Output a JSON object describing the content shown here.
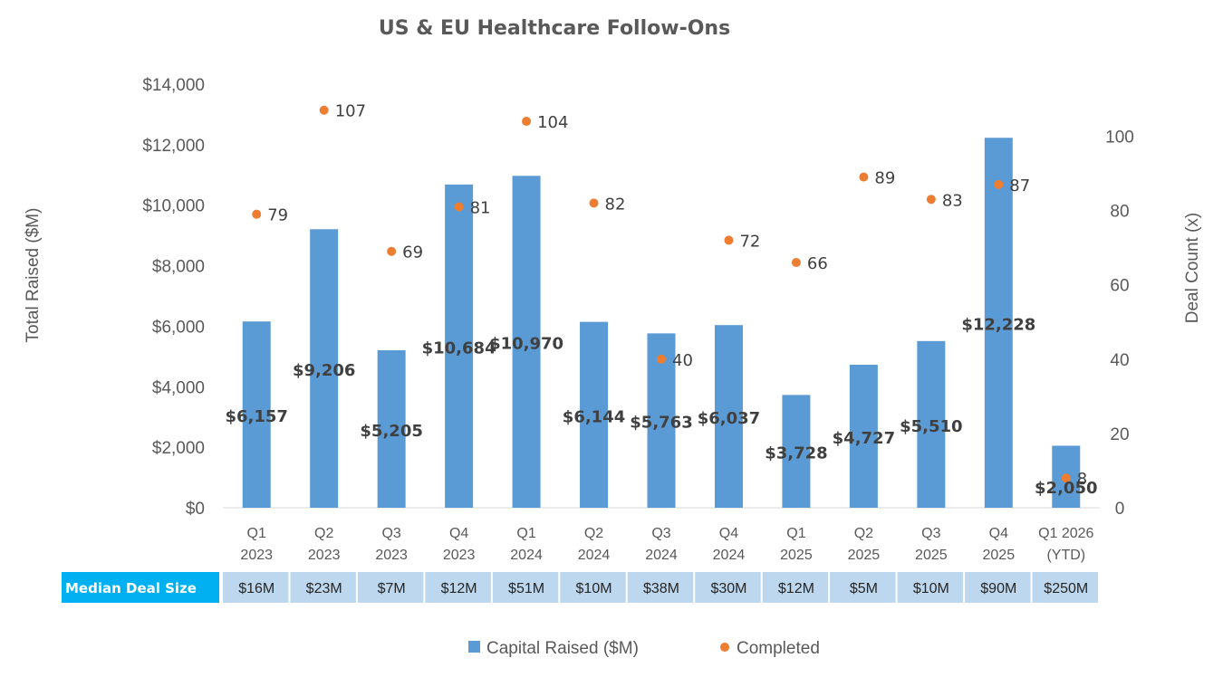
{
  "chart_data": {
    "type": "bar",
    "title": "US & EU Healthcare Follow-Ons",
    "ylabel": "Total Raised ($M)",
    "y2label": "Deal Count (x)",
    "ylim": [
      0,
      14000
    ],
    "y2lim": [
      0,
      114
    ],
    "yticks": [
      "$0",
      "$2,000",
      "$4,000",
      "$6,000",
      "$8,000",
      "$10,000",
      "$12,000",
      "$14,000"
    ],
    "yticks_values": [
      0,
      2000,
      4000,
      6000,
      8000,
      10000,
      12000,
      14000
    ],
    "y2ticks": [
      "0",
      "20",
      "40",
      "60",
      "80",
      "100"
    ],
    "y2ticks_values": [
      0,
      20,
      40,
      60,
      80,
      100
    ],
    "categories": [
      [
        "Q1",
        "2023"
      ],
      [
        "Q2",
        "2023"
      ],
      [
        "Q3",
        "2023"
      ],
      [
        "Q4",
        "2023"
      ],
      [
        "Q1",
        "2024"
      ],
      [
        "Q2",
        "2024"
      ],
      [
        "Q3",
        "2024"
      ],
      [
        "Q4",
        "2024"
      ],
      [
        "Q1",
        "2025"
      ],
      [
        "Q2",
        "2025"
      ],
      [
        "Q3",
        "2025"
      ],
      [
        "Q4",
        "2025"
      ],
      [
        "Q1 2026",
        "(YTD)"
      ]
    ],
    "series": [
      {
        "name": "Capital Raised ($M)",
        "type": "bar",
        "axis": "left",
        "color": "#5b9bd5",
        "values": [
          6157,
          9206,
          5205,
          10684,
          10970,
          6144,
          5763,
          6037,
          3728,
          4727,
          5510,
          12228,
          2050
        ],
        "labels": [
          "$6,157",
          "$9,206",
          "$5,205",
          "$10,684",
          "$10,970",
          "$6,144",
          "$5,763",
          "$6,037",
          "$3,728",
          "$4,727",
          "$5,510",
          "$12,228",
          "$2,050"
        ]
      },
      {
        "name": "Completed",
        "type": "scatter",
        "axis": "right",
        "color": "#ed7d31",
        "values": [
          79,
          107,
          69,
          81,
          104,
          82,
          40,
          72,
          66,
          89,
          83,
          87,
          8
        ],
        "labels": [
          "79",
          "107",
          "69",
          "81",
          "104",
          "82",
          "40",
          "72",
          "66",
          "89",
          "83",
          "87",
          "8"
        ]
      }
    ],
    "table": {
      "header": "Median Deal Size",
      "values": [
        "$16M",
        "$23M",
        "$7M",
        "$12M",
        "$51M",
        "$10M",
        "$38M",
        "$30M",
        "$12M",
        "$5M",
        "$10M",
        "$90M",
        "$250M"
      ],
      "header_color": "#00b0f0",
      "cell_color": "#bdd7ee"
    },
    "legend": {
      "position": "bottom",
      "items": [
        "Capital Raised ($M)",
        "Completed"
      ]
    },
    "grid": false
  }
}
